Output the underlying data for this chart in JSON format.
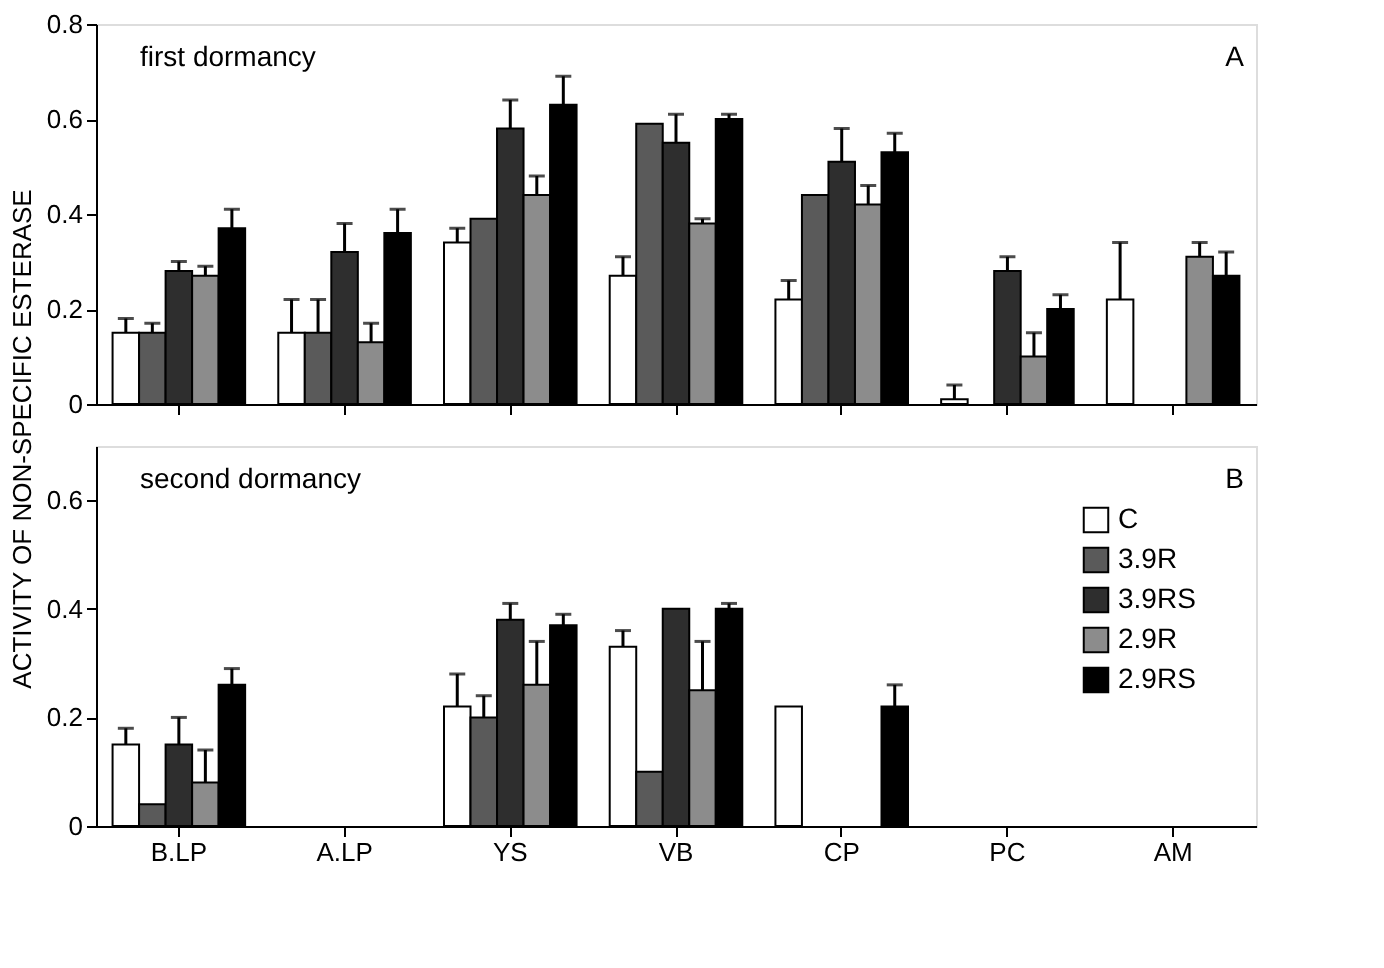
{
  "chart_data": [
    {
      "type": "bar",
      "ylabel": "ACTIVITY OF NON-SPECIFIC ESTERASE",
      "categories": [
        null,
        null,
        null,
        null,
        null,
        null,
        null
      ],
      "ylim": [
        0,
        0.8
      ],
      "yticks": [
        0,
        0.2,
        0.4,
        0.6,
        0.8
      ],
      "tick_labels": "y",
      "legend": false,
      "annotations": [
        "first dormancy",
        "A"
      ],
      "series": [
        {
          "color": "#ffffff",
          "values": [
            0.15,
            0.15,
            0.34,
            0.27,
            0.22,
            0.01,
            0.22
          ],
          "errors": [
            [
              0.15,
              0.18
            ],
            [
              0.15,
              0.22
            ],
            [
              0.34,
              0.37
            ],
            [
              0.27,
              0.31
            ],
            [
              0.22,
              0.26
            ],
            [
              0.01,
              0.04
            ],
            [
              0.22,
              0.34
            ]
          ]
        },
        {
          "color": "#5a5a5a",
          "values": [
            0.15,
            0.15,
            0.39,
            0.59,
            0.44,
            null,
            null
          ],
          "errors": [
            [
              0.15,
              0.17
            ],
            [
              0.15,
              0.22
            ],
            null,
            null,
            null,
            null,
            null
          ]
        },
        {
          "color": "#2e2e2e",
          "values": [
            0.28,
            0.32,
            0.58,
            0.55,
            0.51,
            0.28,
            null
          ],
          "errors": [
            [
              0.28,
              0.3
            ],
            [
              0.32,
              0.38
            ],
            [
              0.58,
              0.64
            ],
            [
              0.55,
              0.61
            ],
            [
              0.51,
              0.58
            ],
            [
              0.28,
              0.31
            ],
            null
          ]
        },
        {
          "color": "#8c8c8c",
          "values": [
            0.27,
            0.13,
            0.44,
            0.38,
            0.42,
            0.1,
            0.31
          ],
          "errors": [
            [
              0.27,
              0.29
            ],
            [
              0.13,
              0.17
            ],
            [
              0.44,
              0.48
            ],
            [
              0.38,
              0.39
            ],
            [
              0.42,
              0.46
            ],
            [
              0.1,
              0.15
            ],
            [
              0.31,
              0.34
            ]
          ]
        },
        {
          "color": "#000000",
          "values": [
            0.37,
            0.36,
            0.63,
            0.6,
            0.53,
            0.2,
            0.27
          ],
          "errors": [
            [
              0.37,
              0.41
            ],
            [
              0.36,
              0.41
            ],
            [
              0.63,
              0.69
            ],
            [
              0.6,
              0.61
            ],
            [
              0.53,
              0.57
            ],
            [
              0.2,
              0.23
            ],
            [
              0.27,
              0.32
            ]
          ]
        }
      ]
    },
    {
      "type": "bar",
      "categories": [
        "B.LP",
        "A.LP",
        "YS",
        "VB",
        "CP",
        "PC",
        "AM"
      ],
      "ylim": [
        0,
        0.7
      ],
      "yticks": [
        0,
        0.2,
        0.4,
        0.6
      ],
      "legend": "top right",
      "annotations": [
        "second dormancy",
        "B"
      ],
      "series": [
        {
          "name": "C",
          "color": "#ffffff",
          "values": [
            0.15,
            null,
            0.22,
            0.33,
            0.22,
            null,
            null
          ],
          "errors": [
            [
              0.15,
              0.18
            ],
            null,
            [
              0.22,
              0.28
            ],
            [
              0.33,
              0.36
            ],
            null,
            null,
            null
          ]
        },
        {
          "name": "3.9R",
          "color": "#5a5a5a",
          "values": [
            0.04,
            null,
            0.2,
            0.1,
            null,
            null,
            null
          ],
          "errors": [
            null,
            null,
            [
              0.2,
              0.24
            ],
            null,
            null,
            null,
            null
          ]
        },
        {
          "name": "3.9RS",
          "color": "#2e2e2e",
          "values": [
            0.15,
            null,
            0.38,
            0.4,
            null,
            null,
            null
          ],
          "errors": [
            [
              0.15,
              0.2
            ],
            null,
            [
              0.38,
              0.41
            ],
            null,
            null,
            null,
            null
          ]
        },
        {
          "name": "2.9R",
          "color": "#8c8c8c",
          "values": [
            0.08,
            null,
            0.26,
            0.25,
            null,
            null,
            null
          ],
          "errors": [
            [
              0.08,
              0.14
            ],
            null,
            [
              0.26,
              0.34
            ],
            [
              0.25,
              0.34
            ],
            null,
            null,
            null
          ]
        },
        {
          "name": "2.9RS",
          "color": "#000000",
          "values": [
            0.26,
            null,
            0.37,
            0.4,
            0.22,
            null,
            null
          ],
          "errors": [
            [
              0.26,
              0.29
            ],
            null,
            [
              0.37,
              0.39
            ],
            [
              0.4,
              0.41
            ],
            [
              0.22,
              0.26
            ],
            null,
            null
          ]
        }
      ]
    }
  ]
}
